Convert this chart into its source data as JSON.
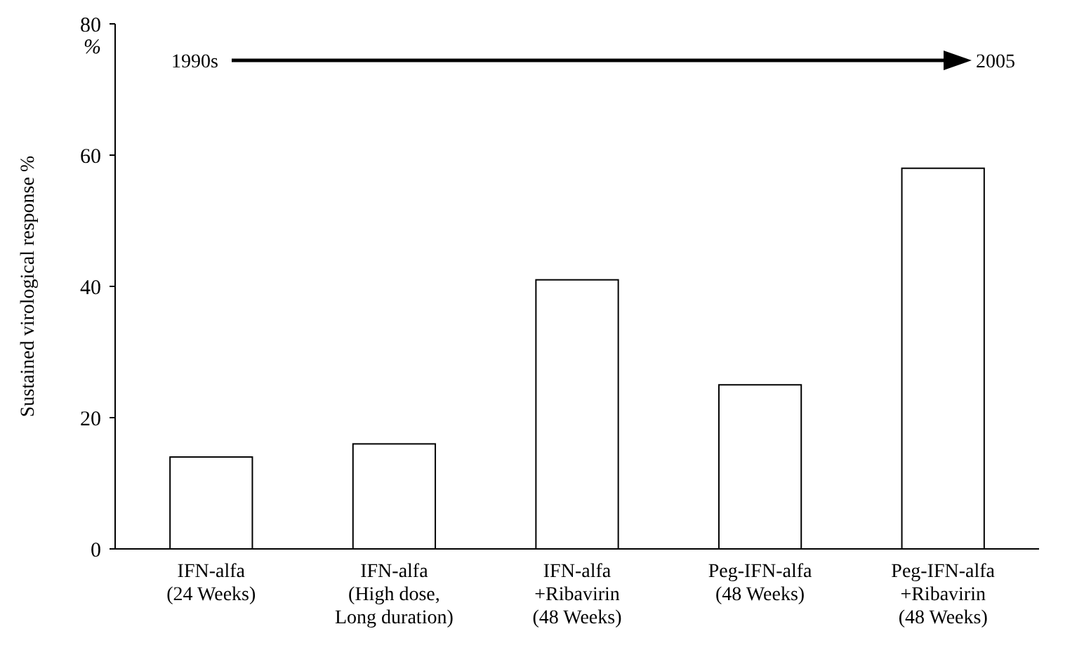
{
  "chart_data": {
    "type": "bar",
    "ylabel": "Sustained virological response %",
    "categories": [
      "IFN-alfa\n(24 Weeks)",
      "IFN-alfa\n(High dose,\nLong duration)",
      "IFN-alfa\n+Ribavirin\n(48 Weeks)",
      "Peg-IFN-alfa\n(48 Weeks)",
      "Peg-IFN-alfa\n+Ribavirin\n(48 Weeks)"
    ],
    "values": [
      14,
      16,
      41,
      25,
      58
    ],
    "color": "#ffffff",
    "ylim": [
      0,
      80
    ],
    "yticks": [
      0,
      20,
      40,
      60,
      80
    ],
    "grid": false,
    "annotations": [
      "1990s",
      "2005",
      "%"
    ]
  }
}
